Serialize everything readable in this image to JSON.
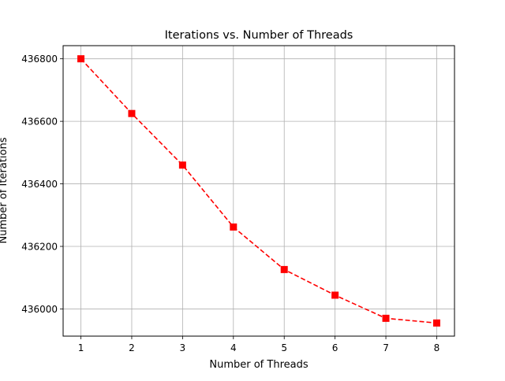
{
  "chart_data": {
    "type": "line",
    "title": "Iterations vs. Number of Threads",
    "xlabel": "Number of Threads",
    "ylabel": "Number of Iterations",
    "x": [
      1,
      2,
      3,
      4,
      5,
      6,
      7,
      8
    ],
    "series": [
      {
        "values": [
          436800,
          436625,
          436460,
          436262,
          436126,
          436044,
          435970,
          435955
        ],
        "color": "#ff0000",
        "line_style": "dashed",
        "marker": "square"
      }
    ],
    "xticks": [
      "1",
      "2",
      "3",
      "4",
      "5",
      "6",
      "7",
      "8"
    ],
    "yticks": [
      "436000",
      "436200",
      "436400",
      "436600",
      "436800"
    ],
    "xlim": [
      0.65,
      8.35
    ],
    "ylim": [
      435913,
      436842
    ],
    "grid": true
  }
}
